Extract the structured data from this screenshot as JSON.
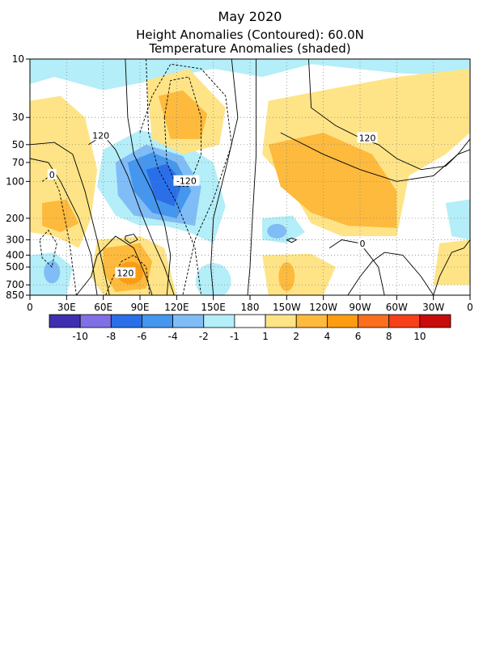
{
  "chart_data": {
    "type": "heatmap",
    "title": "May 2020",
    "subtitle": "Height Anomalies (Contoured): 60.0N",
    "subtitle2": "Temperature Anomalies (shaded)",
    "xlabel": "",
    "ylabel": "",
    "x_ticks": [
      "0",
      "30E",
      "60E",
      "90E",
      "120E",
      "150E",
      "180",
      "150W",
      "120W",
      "90W",
      "60W",
      "30W",
      "0"
    ],
    "x_lon": [
      0,
      30,
      60,
      90,
      120,
      150,
      180,
      210,
      240,
      270,
      300,
      330,
      360
    ],
    "y_ticks": [
      "10",
      "30",
      "50",
      "70",
      "100",
      "200",
      "300",
      "400",
      "500",
      "700",
      "850"
    ],
    "y_pressure_hPa": [
      10,
      30,
      50,
      70,
      100,
      200,
      300,
      400,
      500,
      700,
      850
    ],
    "y_scale": "log (pressure, decreasing upward)",
    "grid": "dotted",
    "colorbar": {
      "labels": [
        "-10",
        "-8",
        "-6",
        "-4",
        "-2",
        "-1",
        "1",
        "2",
        "4",
        "6",
        "8",
        "10"
      ],
      "colors": [
        "#3f2fb0",
        "#8070e6",
        "#2a6fe8",
        "#4596ee",
        "#80bdf7",
        "#b4eef8",
        "#ffffff",
        "#fee487",
        "#fdba3d",
        "#fc9c11",
        "#fb6e1c",
        "#f5401a",
        "#c80b0b"
      ]
    },
    "temperature_anomaly_regions": [
      {
        "lon_center": 70,
        "p_center": 100,
        "value": -4
      },
      {
        "lon_center": 105,
        "p_center": 100,
        "value": -6
      },
      {
        "lon_center": 20,
        "p_center": 500,
        "value": -2
      },
      {
        "lon_center": 200,
        "p_center": 250,
        "value": -2
      },
      {
        "lon_center": 290,
        "p_center": 150,
        "value": 2
      },
      {
        "lon_center": 80,
        "p_center": 600,
        "value": 4
      },
      {
        "lon_center": 100,
        "p_center": 25,
        "value": 2
      },
      {
        "lon_center": 25,
        "p_center": 150,
        "value": 2
      }
    ],
    "contour_labels": [
      {
        "text": "120",
        "lon": 58,
        "p": 42
      },
      {
        "text": "0",
        "lon": 18,
        "p": 88
      },
      {
        "text": "-120",
        "lon": 128,
        "p": 99
      },
      {
        "text": "120",
        "lon": 78,
        "p": 560
      },
      {
        "text": "120",
        "lon": 276,
        "p": 44
      },
      {
        "text": "0",
        "lon": 272,
        "p": 322
      }
    ],
    "contour_interval_m": 60
  }
}
